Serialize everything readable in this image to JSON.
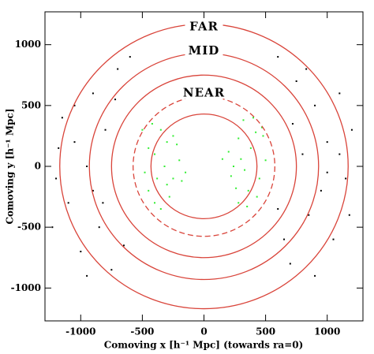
{
  "chart_data": {
    "type": "scatter",
    "xlabel": "Comoving x [h⁻¹ Mpc] (towards ra=0)",
    "ylabel": "Comoving y [h⁻¹ Mpc]",
    "xlim": [
      -1290,
      1290
    ],
    "ylim": [
      -1270,
      1270
    ],
    "xticks": [
      -1000,
      -500,
      0,
      500,
      1000
    ],
    "yticks": [
      -1000,
      -500,
      0,
      500,
      1000
    ],
    "circle_color": "#d9443a",
    "circles": [
      {
        "r": 430,
        "dashed": false
      },
      {
        "r": 575,
        "dashed": true
      },
      {
        "r": 750,
        "dashed": false
      },
      {
        "r": 930,
        "dashed": false
      },
      {
        "r": 1170,
        "dashed": false
      }
    ],
    "annotations": [
      {
        "text": "FAR",
        "x": 0,
        "y": 1145
      },
      {
        "text": "MID",
        "x": 0,
        "y": 945
      },
      {
        "text": "NEAR",
        "x": 0,
        "y": 600
      }
    ],
    "series": [
      {
        "color": "#000000",
        "x": [
          -1150,
          -1050,
          -1200,
          -900,
          -850,
          -1000,
          -700,
          -750,
          -1100,
          -950,
          -800,
          -650,
          -1180,
          -900,
          -1050,
          -720,
          -820,
          -600,
          -950,
          -1230,
          750,
          900,
          1000,
          1150,
          850,
          700,
          1050,
          600,
          950,
          1200,
          800,
          1100,
          650,
          900,
          1180,
          720,
          1000,
          830,
          600,
          1100
        ],
        "values": [
          400,
          200,
          -100,
          600,
          -500,
          -700,
          800,
          -850,
          -300,
          0,
          300,
          -650,
          150,
          -200,
          500,
          550,
          -300,
          900,
          -900,
          -500,
          700,
          500,
          200,
          -100,
          -400,
          -800,
          -600,
          900,
          -200,
          300,
          100,
          600,
          -600,
          -900,
          -400,
          350,
          -50,
          800,
          -350,
          100
        ]
      },
      {
        "color": "#33ee33",
        "x": [
          -500,
          -450,
          -400,
          -350,
          -300,
          -250,
          -200,
          -150,
          -420,
          -380,
          -320,
          -280,
          -220,
          -480,
          -350,
          -450,
          -300,
          -180,
          -400,
          -250,
          150,
          220,
          280,
          330,
          380,
          430,
          470,
          500,
          260,
          350,
          400,
          200,
          300,
          450,
          480,
          240,
          360,
          420,
          320,
          280
        ],
        "values": [
          300,
          -200,
          100,
          -350,
          200,
          -100,
          50,
          -50,
          350,
          -100,
          0,
          -250,
          180,
          -50,
          300,
          150,
          -150,
          -120,
          -300,
          250,
          60,
          -80,
          230,
          -30,
          150,
          -250,
          320,
          50,
          -180,
          -330,
          400,
          120,
          60,
          -100,
          250,
          0,
          -200,
          280,
          380,
          -300
        ]
      }
    ]
  }
}
